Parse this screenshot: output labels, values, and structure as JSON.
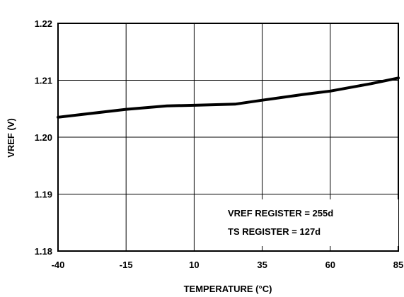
{
  "chart_data": {
    "type": "line",
    "title": "",
    "xlabel": "TEMPERATURE (°C)",
    "ylabel": "VREF (V)",
    "xlim": [
      -40,
      85
    ],
    "ylim": [
      1.18,
      1.22
    ],
    "x_ticks": [
      -40,
      -15,
      10,
      35,
      60,
      85
    ],
    "x_tick_labels": [
      "-40",
      "-15",
      "10",
      "35",
      "60",
      "85"
    ],
    "y_ticks": [
      1.18,
      1.19,
      1.2,
      1.21,
      1.22
    ],
    "y_tick_labels": [
      "1.18",
      "1.19",
      "1.20",
      "1.21",
      "1.22"
    ],
    "grid": true,
    "legend": "none",
    "series": [
      {
        "x": [
          -40,
          -15,
          0,
          10,
          25,
          35,
          50,
          60,
          75,
          85
        ],
        "y": [
          1.2035,
          1.2049,
          1.2055,
          1.2056,
          1.2058,
          1.2065,
          1.2075,
          1.2081,
          1.2094,
          1.2104
        ]
      }
    ],
    "annotations": [
      "VREF REGISTER = 255d",
      "TS REGISTER = 127d"
    ]
  },
  "colors": {
    "line": "#000000",
    "grid": "#000000",
    "background": "#ffffff"
  }
}
